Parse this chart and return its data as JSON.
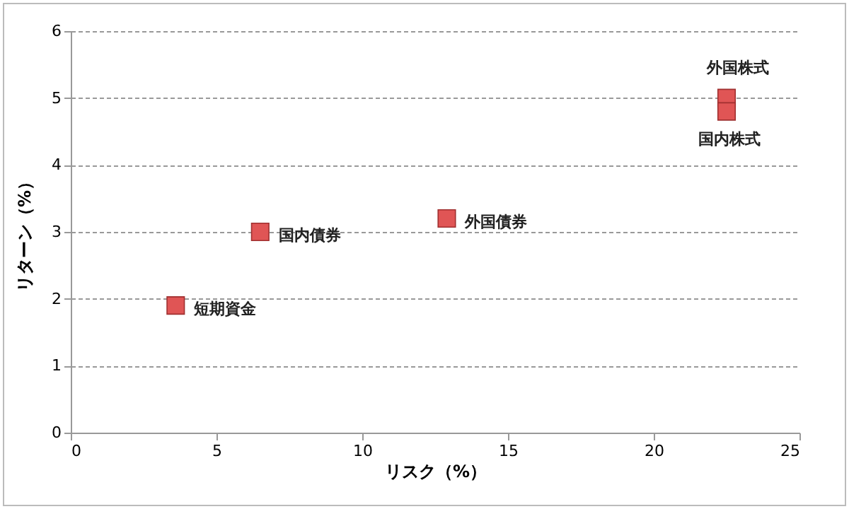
{
  "chart_data": {
    "type": "scatter",
    "xlabel": "リスク（%）",
    "ylabel": "リターン（%）",
    "x": [
      3.6,
      6.5,
      12.9,
      22.5,
      22.5
    ],
    "series": [
      {
        "color": "#e05555",
        "values": [
          1.9,
          3.0,
          3.2,
          5.0,
          4.8
        ]
      }
    ],
    "xlim": [
      0,
      25
    ],
    "xticks": [
      0,
      5,
      10,
      15,
      20,
      25
    ],
    "ylim": [
      0,
      6
    ],
    "yticks": [
      0,
      1,
      2,
      3,
      4,
      5,
      6
    ],
    "grid": "y",
    "marker": "square",
    "annotations": [
      {
        "text": "短期資金",
        "x": 3.6,
        "y": 1.9
      },
      {
        "text": "国内債券",
        "x": 6.5,
        "y": 3.0
      },
      {
        "text": "外国債券",
        "x": 12.9,
        "y": 3.2
      },
      {
        "text": "外国株式",
        "x": 22.5,
        "y": 5.0
      },
      {
        "text": "国内株式",
        "x": 22.5,
        "y": 4.8
      }
    ]
  }
}
